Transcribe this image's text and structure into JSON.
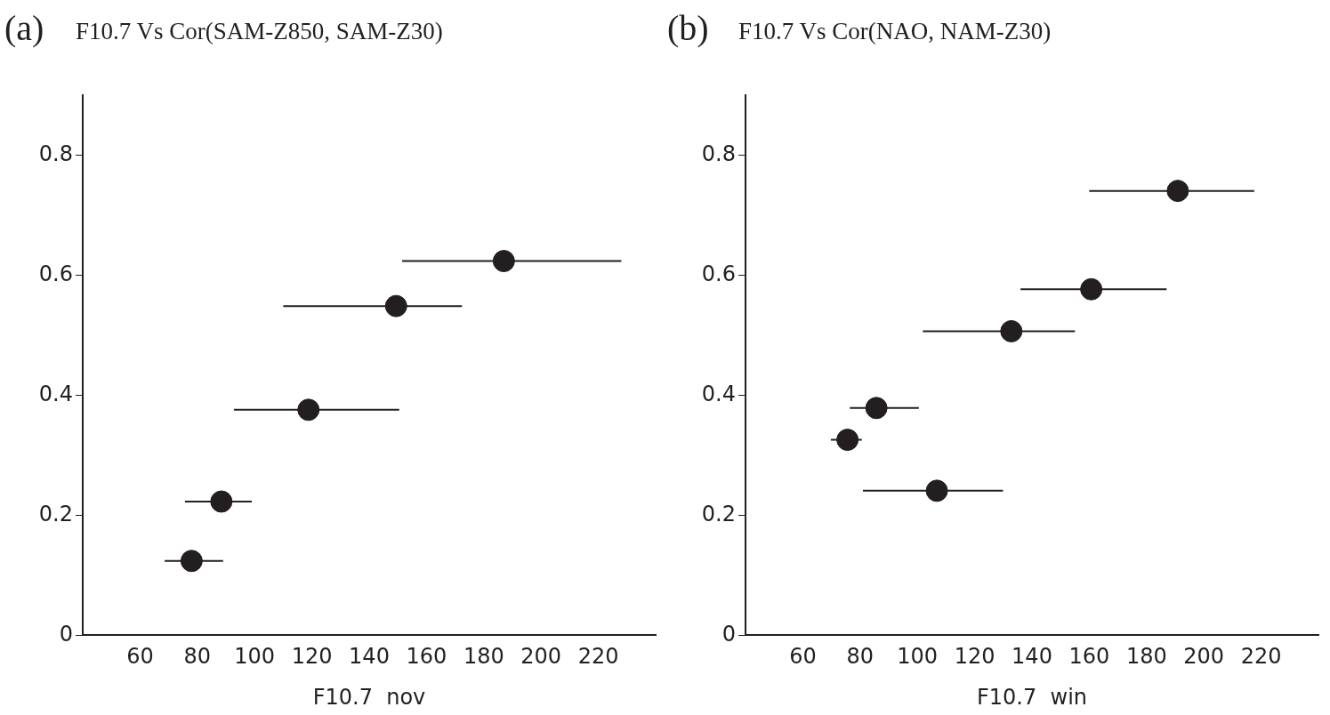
{
  "chart_data": [
    {
      "type": "scatter",
      "title": "F10.7 Vs Cor(SAM-Z850, SAM-Z30)",
      "annotations": [
        "(a)"
      ],
      "xlabel": "F10.7  nov",
      "marker": "circle",
      "color": "#231f20",
      "x": [
        78,
        88.4,
        118.8,
        149.4,
        187
      ],
      "values": [
        0.124,
        0.223,
        0.376,
        0.549,
        0.624
      ],
      "xerrors": [
        [
          68.6,
          89
        ],
        [
          75.7,
          99
        ],
        [
          92.8,
          150.5
        ],
        [
          110,
          172.4
        ],
        [
          151.5,
          228
        ]
      ],
      "xlim": [
        40,
        240
      ],
      "xticks": [
        60,
        80,
        100,
        120,
        140,
        160,
        180,
        200,
        220
      ],
      "ylim": [
        0,
        0.9
      ],
      "yticks": [
        0,
        0.2,
        0.4,
        0.6,
        0.8
      ]
    },
    {
      "type": "scatter",
      "title": "F10.7 Vs Cor(NAO, NAM-Z30)",
      "annotations": [
        "(b)"
      ],
      "xlabel": "F10.7  win",
      "marker": "circle",
      "color": "#231f20",
      "x": [
        75.6,
        85.7,
        106.8,
        132.8,
        160.7,
        190.9
      ],
      "values": [
        0.326,
        0.379,
        0.241,
        0.507,
        0.577,
        0.741
      ],
      "xerrors": [
        [
          69.8,
          80.6
        ],
        [
          76.4,
          100.5
        ],
        [
          81,
          129.9
        ],
        [
          101.9,
          155
        ],
        [
          136,
          187
        ],
        [
          160,
          217.6
        ]
      ],
      "xlim": [
        40,
        240
      ],
      "xticks": [
        60,
        80,
        100,
        120,
        140,
        160,
        180,
        200,
        220
      ],
      "ylim": [
        0,
        0.9
      ],
      "yticks": [
        0,
        0.2,
        0.4,
        0.6,
        0.8
      ]
    }
  ]
}
